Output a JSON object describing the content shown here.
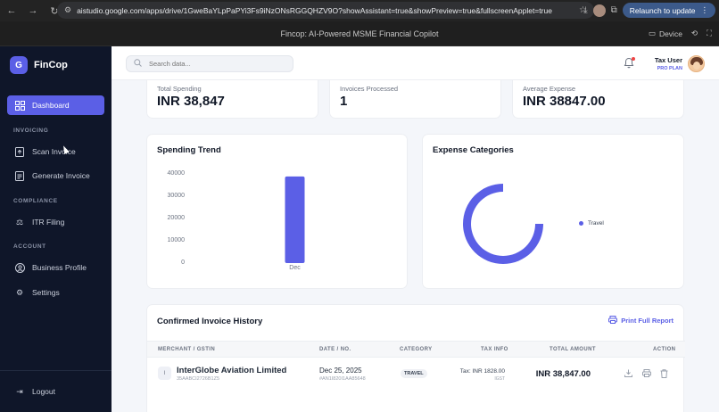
{
  "browser": {
    "url": "aistudio.google.com/apps/drive/1GweBaYLpPaPYi3Fs9iNzONsRGGQHZV9O?showAssistant=true&showPreview=true&fullscreenApplet=true",
    "relaunch_label": "Relaunch to update"
  },
  "app_title": "Fincop: AI-Powered MSME Financial Copilot",
  "title_bar": {
    "device_label": "Device"
  },
  "brand": {
    "logo_letter": "G",
    "name": "FinCop"
  },
  "sidebar": {
    "items": [
      {
        "label": "Dashboard",
        "icon": "grid-icon",
        "active": true
      },
      {
        "section": "INVOICING"
      },
      {
        "label": "Scan Invoice",
        "icon": "upload-doc-icon"
      },
      {
        "label": "Generate Invoice",
        "icon": "document-icon"
      },
      {
        "section": "COMPLIANCE"
      },
      {
        "label": "ITR Filing",
        "icon": "scale-icon"
      },
      {
        "section": "ACCOUNT"
      },
      {
        "label": "Business Profile",
        "icon": "user-circle-icon"
      },
      {
        "label": "Settings",
        "icon": "gear-icon"
      }
    ],
    "logout_label": "Logout"
  },
  "topbar": {
    "search_placeholder": "Search data...",
    "user_name": "Tax User",
    "user_plan": "PRO PLAN"
  },
  "stats": [
    {
      "label": "Total Spending",
      "value": "INR 38,847"
    },
    {
      "label": "Invoices Processed",
      "value": "1"
    },
    {
      "label": "Average Expense",
      "value": "INR 38847.00"
    }
  ],
  "spending_trend": {
    "title": "Spending Trend"
  },
  "expense_categories": {
    "title": "Expense Categories",
    "legend": [
      "Travel"
    ]
  },
  "chart_data": [
    {
      "type": "bar",
      "title": "Spending Trend",
      "categories": [
        "Dec"
      ],
      "values": [
        38847
      ],
      "yticks": [
        "40000",
        "30000",
        "20000",
        "10000",
        "0"
      ],
      "ylim": [
        0,
        40000
      ],
      "color": "#5b5fe6"
    },
    {
      "type": "pie",
      "title": "Expense Categories",
      "labels": [
        "Travel"
      ],
      "values": [
        38847
      ],
      "color": "#5b5fe6",
      "legend": "right"
    }
  ],
  "invoice_history": {
    "title": "Confirmed Invoice History",
    "print_label": "Print Full Report",
    "columns": [
      "MERCHANT / GSTIN",
      "DATE / NO.",
      "CATEGORY",
      "TAX INFO",
      "TOTAL AMOUNT",
      "ACTION"
    ],
    "rows": [
      {
        "badge": "I",
        "merchant": "InterGlobe Aviation Limited",
        "gstin": "35AABCI2726B1Z5",
        "date": "Dec 25, 2025",
        "invoice_no": "#AN1I820I1AA85648",
        "category": "TRAVEL",
        "tax": "Tax: INR 1828.00",
        "tax_type": "IGST",
        "total": "INR 38,847.00"
      }
    ]
  }
}
